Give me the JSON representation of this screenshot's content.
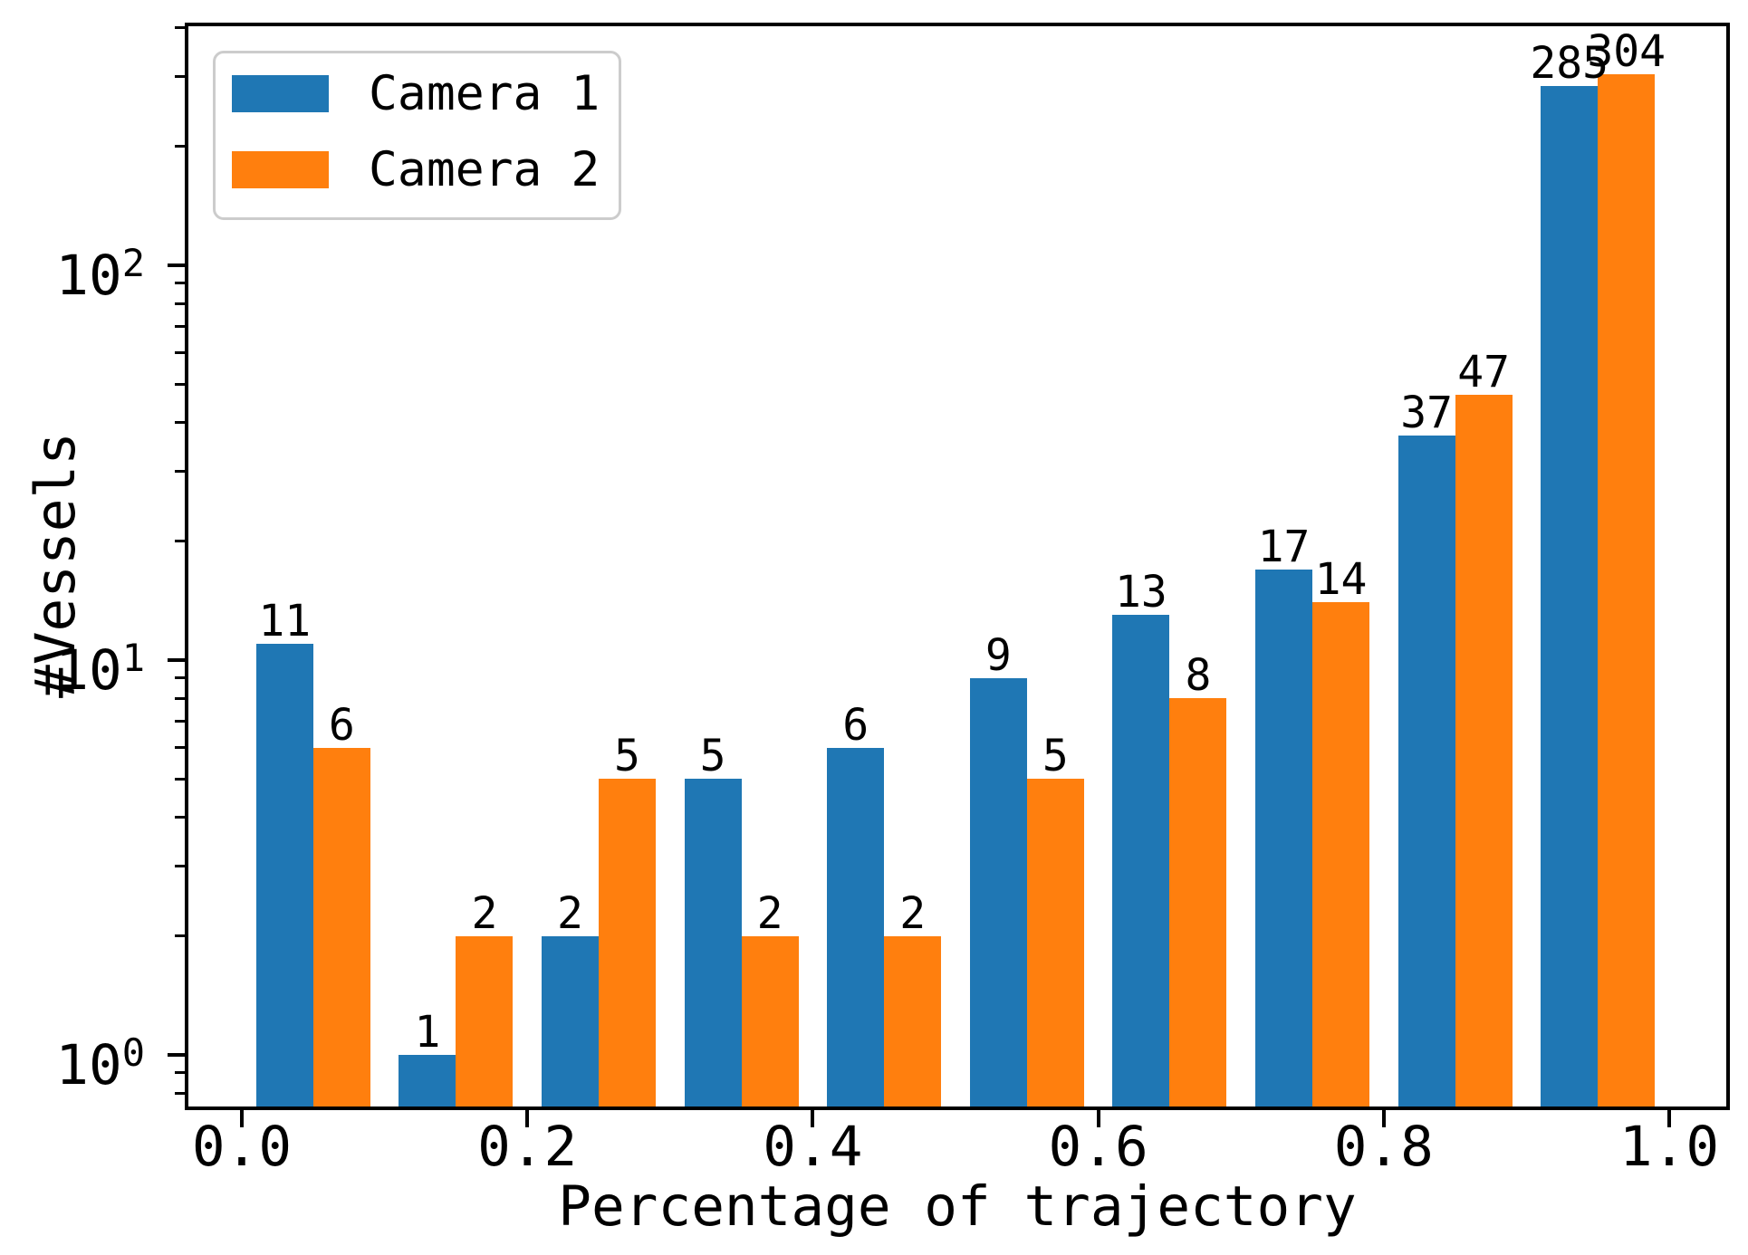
{
  "figure": {
    "background": "#ffffff",
    "spine_color": "#000000"
  },
  "legend": {
    "position": "upper left",
    "items": [
      {
        "label": "Camera 1",
        "color": "#1f77b4"
      },
      {
        "label": "Camera 2",
        "color": "#ff7f0e"
      }
    ]
  },
  "chart_data": {
    "type": "bar",
    "title": "",
    "xlabel": "Percentage of trajectory",
    "ylabel": "#Vessels",
    "yscale": "log",
    "grid": false,
    "bar_value_labels": true,
    "xlim": [
      -0.039,
      1.04
    ],
    "ylim": [
      0.74,
      430
    ],
    "bin_centers": [
      0.05,
      0.15,
      0.25,
      0.35,
      0.45,
      0.55,
      0.65,
      0.75,
      0.85,
      0.95
    ],
    "bar_width_data": 0.04,
    "series": [
      {
        "name": "Camera 1",
        "color": "#1f77b4",
        "values": [
          11,
          1,
          2,
          5,
          6,
          9,
          13,
          17,
          37,
          285
        ]
      },
      {
        "name": "Camera 2",
        "color": "#ff7f0e",
        "values": [
          6,
          2,
          5,
          2,
          2,
          5,
          8,
          14,
          47,
          304
        ]
      }
    ],
    "x_ticks": [
      {
        "value": 0.0,
        "label": "0.0"
      },
      {
        "value": 0.2,
        "label": "0.2"
      },
      {
        "value": 0.4,
        "label": "0.4"
      },
      {
        "value": 0.6,
        "label": "0.6"
      },
      {
        "value": 0.8,
        "label": "0.8"
      },
      {
        "value": 1.0,
        "label": "1.0"
      }
    ],
    "y_major_ticks": [
      {
        "value": 1,
        "base": "10",
        "exponent": "0"
      },
      {
        "value": 10,
        "base": "10",
        "exponent": "1"
      },
      {
        "value": 100,
        "base": "10",
        "exponent": "2"
      }
    ],
    "y_minor_ticks": [
      0.8,
      0.9,
      2,
      3,
      4,
      5,
      6,
      7,
      8,
      9,
      20,
      30,
      40,
      50,
      60,
      70,
      80,
      90,
      200,
      300,
      400
    ]
  }
}
